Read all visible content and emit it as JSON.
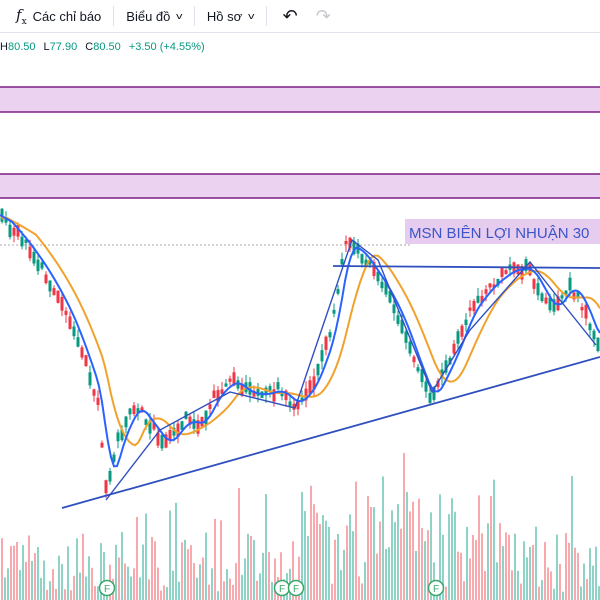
{
  "toolbar": {
    "indicators_label": "Các chỉ báo",
    "chart_type_label": "Biểu đồ",
    "profile_label": "Hồ sơ",
    "undo_icon": "undo-icon",
    "redo_icon": "redo-icon"
  },
  "ohlc": {
    "h_label": "H",
    "h_value": "80.50",
    "l_label": "L",
    "l_value": "77.90",
    "c_label": "C",
    "c_value": "80.50",
    "change": "+3.50 (+4.55%)",
    "value_color": "#089981"
  },
  "chart": {
    "annotation_text": "MSN BIÊN LỢI NHUẬN 30",
    "event_marker_label": "F",
    "colors": {
      "up": "#089981",
      "down": "#f23645",
      "volume_up": "#8fd3c6",
      "volume_down": "#f7a9ae",
      "ma_fast": "#2962ff",
      "ma_slow": "#f0a22d",
      "trendline": "#2f4fbf",
      "zone_fill": "#ecd2f1",
      "zone_border": "#7b1f86",
      "annotation_bg": "#e6ccee",
      "annotation_text": "#3b55c8"
    }
  }
}
